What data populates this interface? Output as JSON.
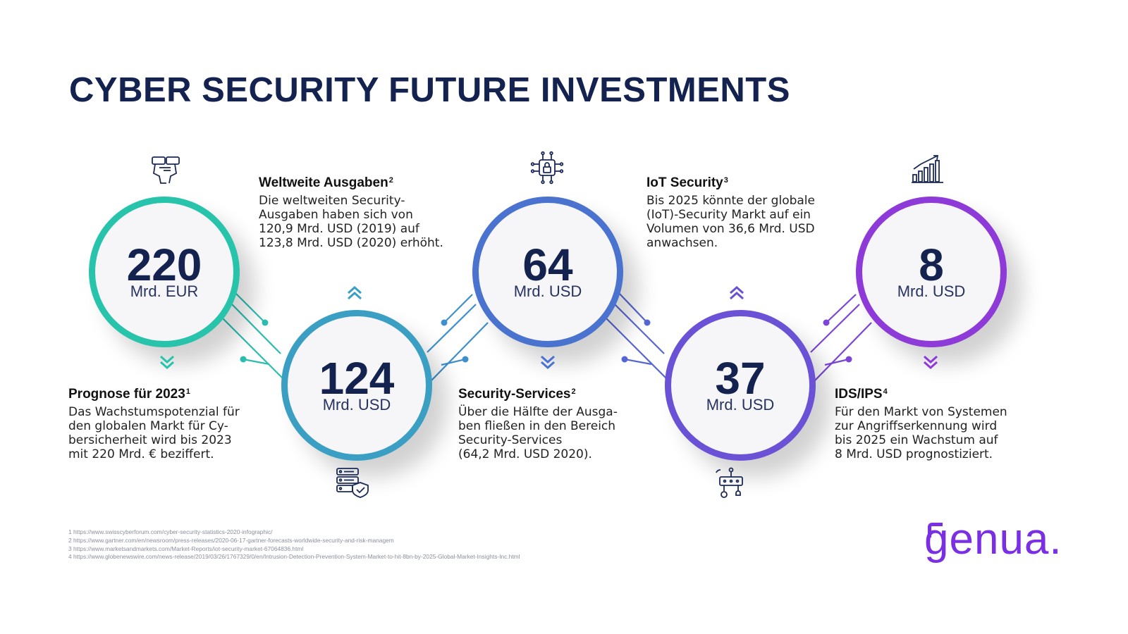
{
  "title": "CYBER SECURITY FUTURE INVESTMENTS",
  "colors": {
    "navy": "#13224f",
    "step1": "#27c4ab",
    "step2": "#3a9fc3",
    "step3": "#4a72cf",
    "step4": "#6a51d6",
    "step5": "#8d3ad8",
    "brand": "#7a2fe4"
  },
  "stats": [
    {
      "value": "220",
      "unit": "Mrd. EUR",
      "icon": "binoculars-icon",
      "chevron": "chevron-down-icon"
    },
    {
      "value": "124",
      "unit": "Mrd. USD",
      "icon": "server-shield-icon",
      "chevron": "chevron-up-icon"
    },
    {
      "value": "64",
      "unit": "Mrd. USD",
      "icon": "chip-lock-icon",
      "chevron": "chevron-down-icon"
    },
    {
      "value": "37",
      "unit": "Mrd. USD",
      "icon": "iot-device-icon",
      "chevron": "chevron-up-icon"
    },
    {
      "value": "8",
      "unit": "Mrd. USD",
      "icon": "bar-chart-growth-icon",
      "chevron": "chevron-down-icon"
    }
  ],
  "blocks": [
    {
      "heading": "Prognose für 2023",
      "ref": "1",
      "text": "Das Wachstumspotenzial für\nden globalen Markt für Cy-\nbersicherheit wird bis 2023\nmit 220 Mrd. € beziffert."
    },
    {
      "heading": "Weltweite Ausgaben",
      "ref": "2",
      "text": "Die weltweiten Security-\nAusgaben haben sich von\n120,9 Mrd. USD (2019) auf\n123,8 Mrd. USD (2020) erhöht."
    },
    {
      "heading": "Security-Services",
      "ref": "2",
      "text": "Über die Hälfte der Ausga-\nben fließen in den Bereich\nSecurity-Services\n(64,2 Mrd. USD 2020)."
    },
    {
      "heading": "IoT Security",
      "ref": "3",
      "text": "Bis 2025 könnte der globale\n(IoT)-Security Markt auf ein\nVolumen von 36,6 Mrd. USD\nanwachsen."
    },
    {
      "heading": "IDS/IPS",
      "ref": "4",
      "text": "Für den Markt von Systemen\nzur Angriffserkennung wird\nbis 2025 ein Wachstum auf\n8 Mrd. USD prognostiziert."
    }
  ],
  "footnotes": [
    "1 https://www.swisscyberforum.com/cyber-security-statistics-2020-infographic/",
    "2 https://www.gartner.com/en/newsroom/press-releases/2020-06-17-gartner-forecasts-worldwide-security-and-risk-managem",
    "3 https://www.marketsandmarkets.com/Market-Reports/iot-security-market-67064836.html",
    "4 https://www.globenewswire.com/news-release/2019/03/26/1767329/0/en/Intrusion-Detection-Prevention-System-Market-to-hit-8bn-by-2025-Global-Market-Insights-Inc.html"
  ],
  "logo": "genua."
}
